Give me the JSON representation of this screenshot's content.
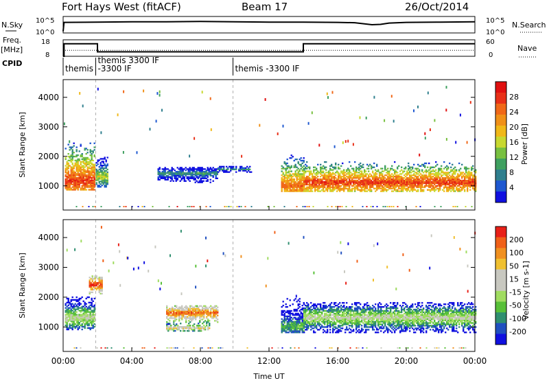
{
  "header": {
    "station": "Fort Hays West (fitACF)",
    "beam": "Beam 17",
    "date": "26/Oct/2014"
  },
  "left_labels": {
    "nsky": "N.Sky",
    "freq": "Freq.",
    "freq_unit": "[MHz]",
    "cpid": "CPID"
  },
  "right_labels": {
    "nsearch": "N.Search",
    "nave": "Nave"
  },
  "chart_data": [
    {
      "type": "line",
      "name": "noise",
      "y_tick_labels": [
        "10^5",
        "10^0"
      ],
      "right_tick_labels": [
        "10^5",
        "10^0"
      ],
      "x": [
        0,
        0.05,
        2,
        4,
        6,
        8,
        10,
        12,
        14,
        16,
        17,
        18,
        18.5,
        19,
        20,
        22,
        24
      ],
      "y_sky_log": [
        0.5,
        3.2,
        3.3,
        3.4,
        3.4,
        3.5,
        3.4,
        3.3,
        3.3,
        3.2,
        3.1,
        2.5,
        2.6,
        3.0,
        3.2,
        3.3,
        3.4
      ]
    },
    {
      "type": "line",
      "name": "freq",
      "y_tick_labels": [
        "18",
        "8"
      ],
      "right_tick_labels": [
        "60",
        "0"
      ],
      "freq_x": [
        0,
        0.05,
        0.05,
        2,
        2,
        14,
        14,
        24
      ],
      "freq_y": [
        8,
        8,
        15.6,
        15.6,
        10.7,
        10.7,
        15.6,
        15.6
      ],
      "nave_level": 22
    },
    {
      "type": "table",
      "name": "cpid",
      "entries": [
        {
          "x": 0.0,
          "lines": [
            "themis"
          ]
        },
        {
          "x": 1.9,
          "lines": [
            "themis 3300 IF",
            "-3300 IF"
          ]
        },
        {
          "x": 9.9,
          "lines": [
            "themis -3300 IF"
          ]
        }
      ],
      "boundaries": [
        0.0,
        1.9,
        9.9
      ]
    },
    {
      "type": "heatmap",
      "name": "power",
      "ylabel": "Slant Range [km]",
      "ylim": [
        180,
        4600
      ],
      "y_ticks": [
        1000,
        2000,
        3000,
        4000
      ],
      "colorbar_label": "Power [dB]",
      "colorbar_ticks": [
        "28",
        "24",
        "20",
        "16",
        "12",
        "8",
        "4"
      ],
      "colors": [
        "#1010e0",
        "#1e58d0",
        "#2f7f8e",
        "#3fa060",
        "#78c040",
        "#c8d830",
        "#f0b818",
        "#f09018",
        "#f06818",
        "#e83018",
        "#e01010"
      ],
      "regions": [
        {
          "t0": 0.1,
          "t1": 1.8,
          "r0": 850,
          "r1": 2700,
          "core": 1150,
          "level": 9
        },
        {
          "t0": 1.9,
          "t1": 2.6,
          "r0": 950,
          "r1": 2000,
          "core": 1300,
          "level": 5
        },
        {
          "t0": 5.5,
          "t1": 9.0,
          "r0": 1100,
          "r1": 1600,
          "core": 1400,
          "level": 3
        },
        {
          "t0": 9.0,
          "t1": 11.0,
          "r0": 1450,
          "r1": 1650,
          "core": 1550,
          "level": 3
        },
        {
          "t0": 12.7,
          "t1": 14.0,
          "r0": 800,
          "r1": 2300,
          "core": 1000,
          "level": 8
        },
        {
          "t0": 14.0,
          "t1": 24.0,
          "r0": 800,
          "r1": 1800,
          "core": 1100,
          "level": 9
        }
      ]
    },
    {
      "type": "heatmap",
      "name": "velocity",
      "ylabel": "Slant Range [km]",
      "ylim": [
        180,
        4600
      ],
      "y_ticks": [
        1000,
        2000,
        3000,
        4000
      ],
      "colorbar_label": "Velocity [m s-1]",
      "colorbar_ticks": [
        "200",
        "100",
        "50",
        "15",
        "-15",
        "-50",
        "-100",
        "-200"
      ],
      "colors": [
        "#1010e0",
        "#2050c0",
        "#2f8f6f",
        "#58c038",
        "#a0dc60",
        "#c8c8c0",
        "#c8c8c0",
        "#f0c030",
        "#f09020",
        "#f06018",
        "#e82018"
      ],
      "regions": [
        {
          "t0": 0.1,
          "t1": 1.8,
          "r0": 900,
          "r1": 2000,
          "core": 1300,
          "level": 5
        },
        {
          "t0": 1.5,
          "t1": 2.3,
          "r0": 2100,
          "r1": 2700,
          "core": 2400,
          "level": 10
        },
        {
          "t0": 6.0,
          "t1": 9.0,
          "r0": 1100,
          "r1": 1700,
          "core": 1450,
          "level": 9
        },
        {
          "t0": 6.0,
          "t1": 8.5,
          "r0": 850,
          "r1": 1100,
          "core": 950,
          "level": 7
        },
        {
          "t0": 12.7,
          "t1": 14.0,
          "r0": 800,
          "r1": 2200,
          "core": 1000,
          "level": 3
        },
        {
          "t0": 14.0,
          "t1": 24.0,
          "r0": 800,
          "r1": 1800,
          "core": 1300,
          "level": 5
        }
      ]
    }
  ],
  "x_axis": {
    "label": "Time UT",
    "ticks": [
      "00:00",
      "04:00",
      "08:00",
      "12:00",
      "16:00",
      "20:00",
      "00:00"
    ],
    "tick_hours": [
      0,
      4,
      8,
      12,
      16,
      20,
      24
    ]
  }
}
